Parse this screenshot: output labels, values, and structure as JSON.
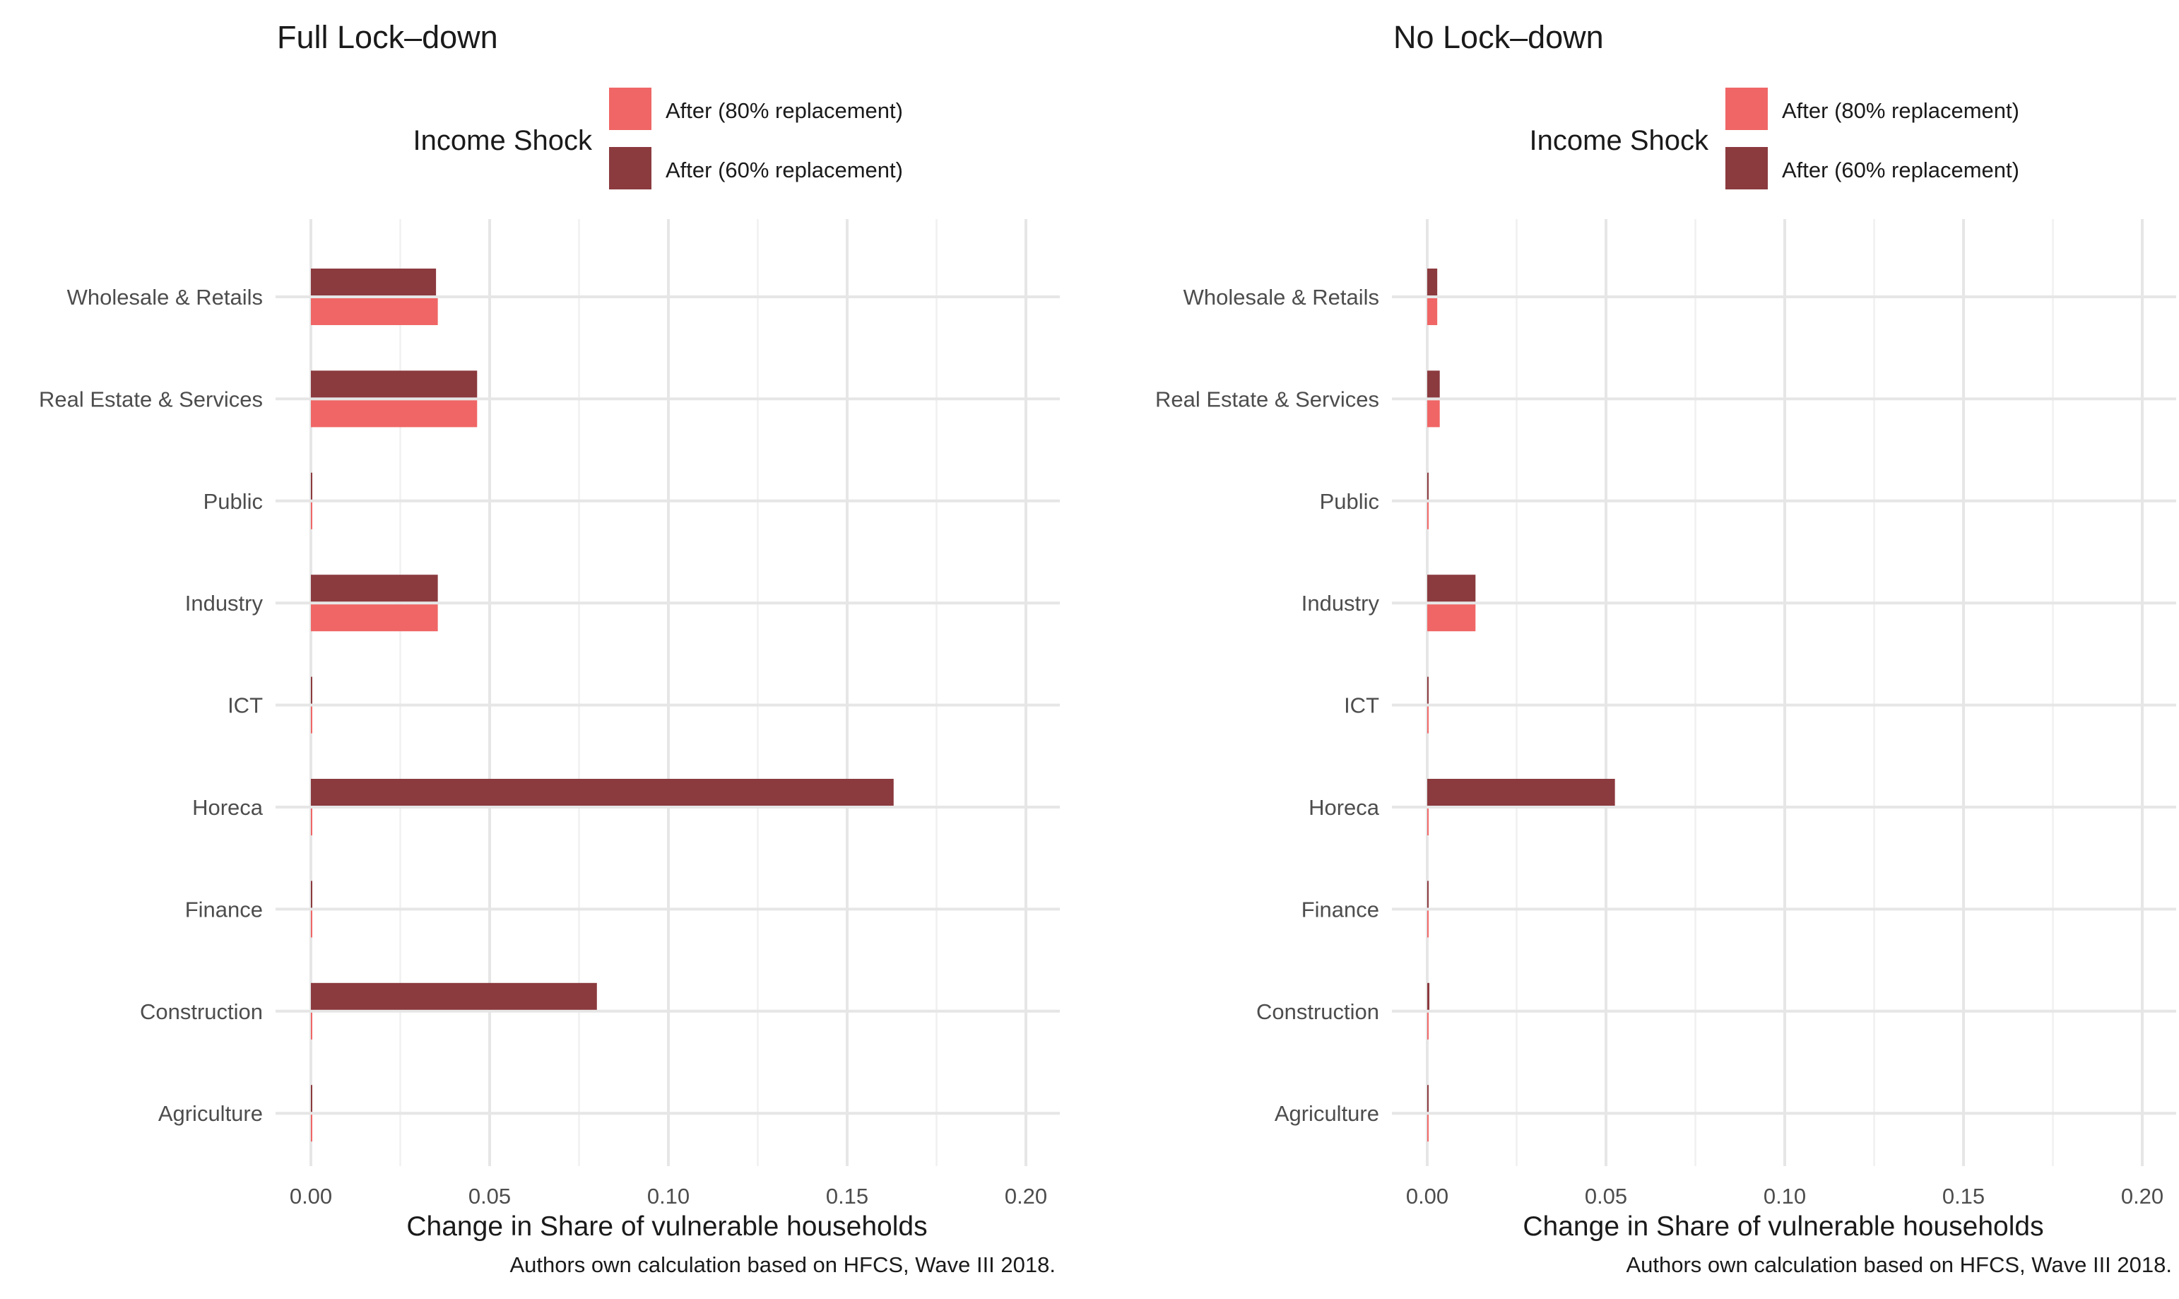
{
  "colors": {
    "after_80": "#f06666",
    "after_60": "#8b3a3e",
    "grid_major": "#e6e6e6",
    "grid_minor": "#f0f0f0",
    "text": "#1a1a1a",
    "tick_text": "#4d4d4d"
  },
  "chart_data": [
    {
      "type": "bar",
      "orientation": "horizontal",
      "title": "Full Lock–down",
      "xlabel": "Change in Share of vulnerable households",
      "caption": "Authors own calculation based on HFCS, Wave III 2018.",
      "legend": {
        "title": "Income Shock",
        "placement": "top",
        "entries": [
          "After (80% replacement)",
          "After (60% replacement)"
        ]
      },
      "categories": [
        "Wholesale & Retails",
        "Real Estate & Services",
        "Public",
        "Industry",
        "ICT",
        "Horeca",
        "Finance",
        "Construction",
        "Agriculture"
      ],
      "x_ticks": [
        "0.00",
        "0.05",
        "0.10",
        "0.15",
        "0.20"
      ],
      "xlim": [
        0,
        0.2
      ],
      "grid": true,
      "series": [
        {
          "name": "After (80% replacement)",
          "color": "#f06666",
          "values": [
            0.0355,
            0.0465,
            0.0004,
            0.0355,
            0.0002,
            0.0002,
            0.0004,
            0.0002,
            0.0002
          ]
        },
        {
          "name": "After (60% replacement)",
          "color": "#8b3a3e",
          "values": [
            0.035,
            0.0465,
            0.0004,
            0.0355,
            0.0002,
            0.163,
            0.0004,
            0.08,
            0.0002
          ]
        }
      ]
    },
    {
      "type": "bar",
      "orientation": "horizontal",
      "title": "No Lock–down",
      "xlabel": "Change in Share of vulnerable households",
      "caption": "Authors own calculation based on HFCS, Wave III 2018.",
      "legend": {
        "title": "Income Shock",
        "placement": "top",
        "entries": [
          "After (80% replacement)",
          "After (60% replacement)"
        ]
      },
      "categories": [
        "Wholesale & Retails",
        "Real Estate & Services",
        "Public",
        "Industry",
        "ICT",
        "Horeca",
        "Finance",
        "Construction",
        "Agriculture"
      ],
      "x_ticks": [
        "0.00",
        "0.05",
        "0.10",
        "0.15",
        "0.20"
      ],
      "xlim": [
        0,
        0.2
      ],
      "grid": true,
      "series": [
        {
          "name": "After (80% replacement)",
          "color": "#f06666",
          "values": [
            0.0028,
            0.0035,
            0.0003,
            0.0135,
            0.0002,
            0.0002,
            0.0002,
            0.0003,
            0.0002
          ]
        },
        {
          "name": "After (60% replacement)",
          "color": "#8b3a3e",
          "values": [
            0.0028,
            0.0035,
            0.0003,
            0.0135,
            0.0002,
            0.0525,
            0.0002,
            0.0006,
            0.0002
          ]
        }
      ]
    }
  ]
}
